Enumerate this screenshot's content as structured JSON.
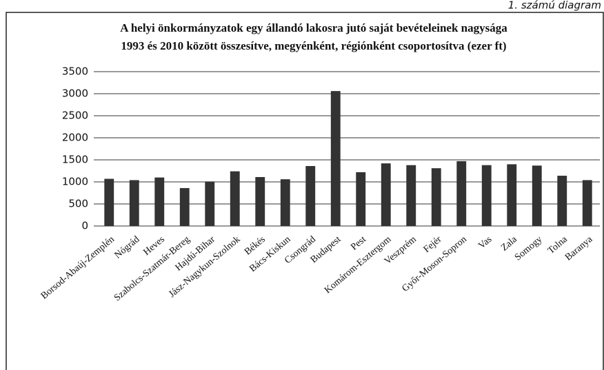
{
  "chart_data": {
    "type": "bar",
    "annotation": "1. számú diagram",
    "title": "A helyi önkormányzatok egy állandó lakosra jutó saját bevételeinek nagysága",
    "subtitle": "1993 és 2010 között összesítve, megyénként, régiónként csoportosítva (ezer ft)",
    "categories": [
      "Borsod-Abaúj-Zemplén",
      "Nógrád",
      "Heves",
      "Szabolcs-Szatmár-Bereg",
      "Hajdú-Bihar",
      "Jász-Nagykun-Szolnok",
      "Békés",
      "Bács-Kiskun",
      "Csongrád",
      "Budapest",
      "Pest",
      "Komárom-Esztergom",
      "Veszprém",
      "Fejér",
      "Győr-Moson-Sopron",
      "Vas",
      "Zala",
      "Somogy",
      "Tolna",
      "Baranya"
    ],
    "values": [
      1070,
      1040,
      1100,
      860,
      1010,
      1240,
      1110,
      1060,
      1360,
      3060,
      1220,
      1420,
      1380,
      1310,
      1470,
      1380,
      1400,
      1370,
      1140,
      1040
    ],
    "color": "#333333",
    "ylim": [
      0,
      3500
    ],
    "yticks": [
      0,
      500,
      1000,
      1500,
      2000,
      2500,
      3000,
      3500
    ],
    "grid": true
  }
}
